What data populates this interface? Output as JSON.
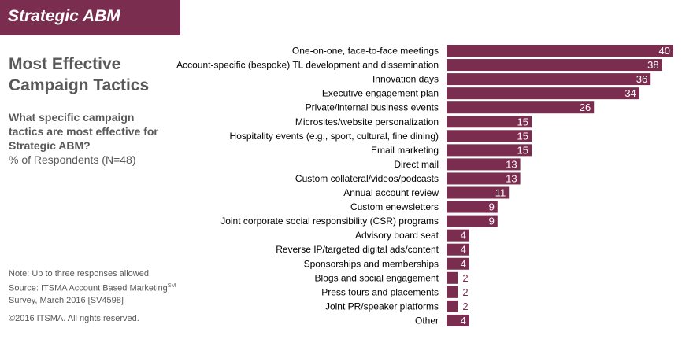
{
  "banner": {
    "title": "Strategic ABM"
  },
  "panel": {
    "title_line1": "Most Effective",
    "title_line2": "Campaign Tactics",
    "question": "What specific campaign tactics are most effective for Strategic ABM?",
    "respondents": "% of Respondents (N=48)"
  },
  "footer": {
    "note": "Note: Up to three responses allowed.",
    "source_line1": "Source: ITSMA Account Based Marketing",
    "source_superscript": "SM",
    "source_line2": "Survey, March 2016 [SV4598]",
    "copyright": "©2016 ITSMA. All rights reserved."
  },
  "colors": {
    "bar": "#7b2d4f",
    "banner": "#7b2d4f",
    "text": "#595959",
    "label": "#000000"
  },
  "chart_data": {
    "type": "bar",
    "orientation": "horizontal",
    "categories": [
      "One-on-one, face-to-face meetings",
      "Account-specific (bespoke) TL development and dissemination",
      "Innovation days",
      "Executive engagement plan",
      "Private/internal business events",
      "Microsites/website personalization",
      "Hospitality events (e.g., sport, cultural, fine dining)",
      "Email marketing",
      "Direct mail",
      "Custom collateral/videos/podcasts",
      "Annual account review",
      "Custom enewsletters",
      "Joint corporate social responsibility (CSR) programs",
      "Advisory board seat",
      "Reverse IP/targeted digital ads/content",
      "Sponsorships and memberships",
      "Blogs and social engagement",
      "Press tours and placements",
      "Joint PR/speaker platforms",
      "Other"
    ],
    "values": [
      40,
      38,
      36,
      34,
      26,
      15,
      15,
      15,
      13,
      13,
      11,
      9,
      9,
      4,
      4,
      4,
      2,
      2,
      2,
      4
    ],
    "xlim": [
      0,
      40
    ],
    "grid": false,
    "legend": "none"
  }
}
